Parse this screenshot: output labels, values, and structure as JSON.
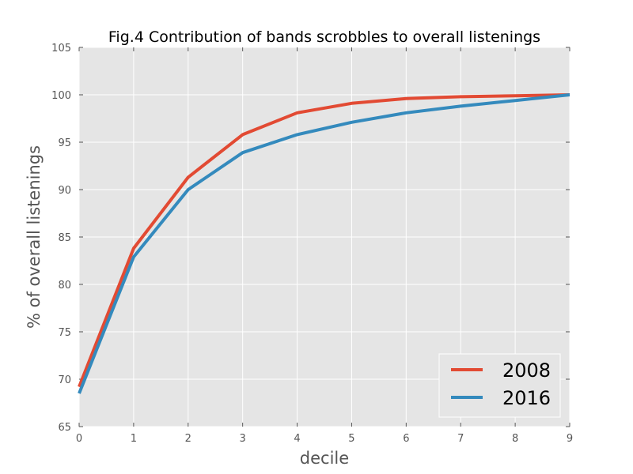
{
  "chart_data": {
    "type": "line",
    "title": "Fig.4 Contribution of bands scrobbles to overall listenings",
    "xlabel": "decile",
    "ylabel": "% of overall listenings",
    "xlim": [
      0,
      9
    ],
    "ylim": [
      65,
      105
    ],
    "x_ticks": [
      "0",
      "1",
      "2",
      "3",
      "4",
      "5",
      "6",
      "7",
      "8",
      "9"
    ],
    "y_ticks": [
      "65",
      "70",
      "75",
      "80",
      "85",
      "90",
      "95",
      "100",
      "105"
    ],
    "x": [
      0,
      1,
      2,
      3,
      4,
      5,
      6,
      7,
      8,
      9
    ],
    "series": [
      {
        "name": "2008",
        "color": "#E24A33",
        "values": [
          69.2,
          83.8,
          91.3,
          95.8,
          98.1,
          99.1,
          99.6,
          99.8,
          99.9,
          100.0
        ]
      },
      {
        "name": "2016",
        "color": "#348ABD",
        "values": [
          68.5,
          82.9,
          90.0,
          93.9,
          95.8,
          97.1,
          98.1,
          98.8,
          99.4,
          100.0
        ]
      }
    ],
    "grid": true,
    "legend_position": "lower-right",
    "background_color": "#E5E5E5",
    "grid_color": "#FFFFFF"
  }
}
